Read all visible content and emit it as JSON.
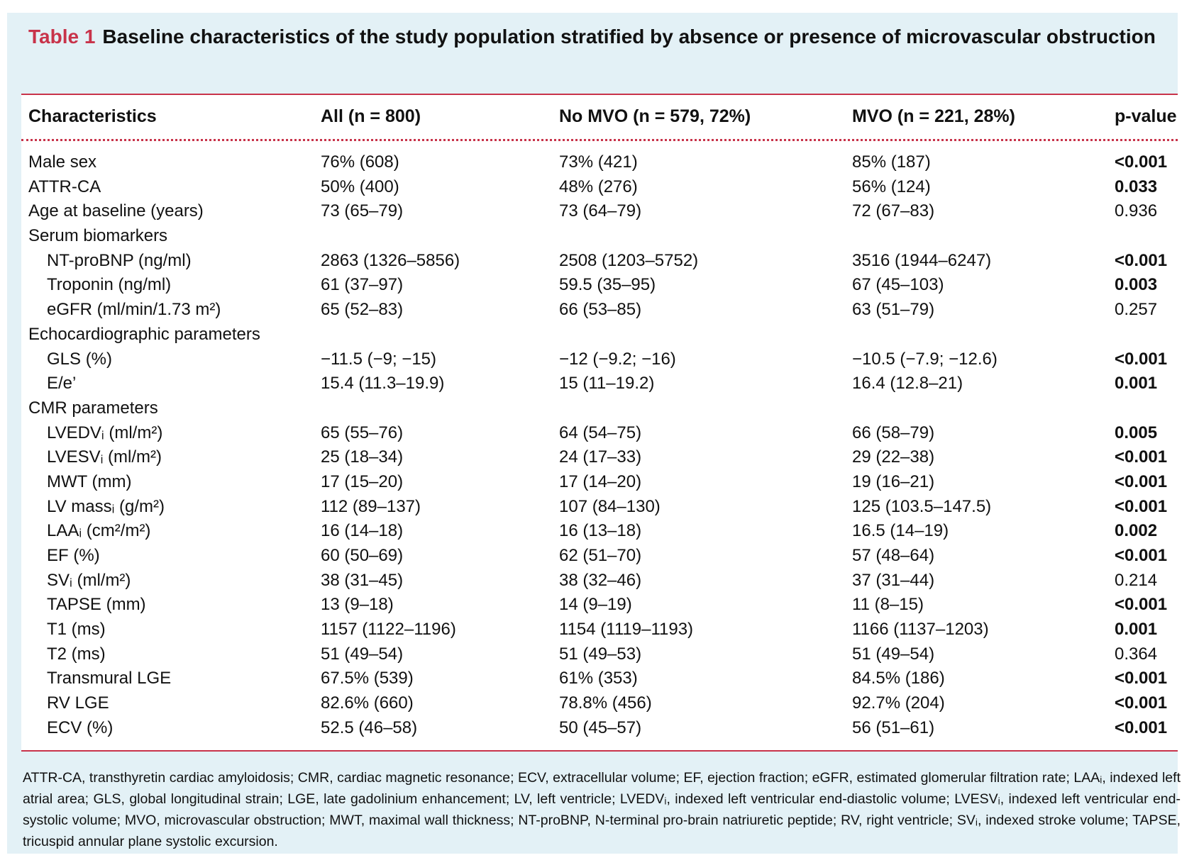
{
  "title": {
    "label": "Table 1",
    "text": "Baseline characteristics of the study population stratified by absence or presence of microvascular obstruction"
  },
  "columns": [
    "Characteristics",
    "All (n = 800)",
    "No MVO (n = 579, 72%)",
    "MVO (n = 221, 28%)",
    "p-value"
  ],
  "rows": [
    {
      "label": "Male sex",
      "indent": false,
      "all": "76% (608)",
      "no_mvo": "73% (421)",
      "mvo": "85% (187)",
      "p": "<0.001",
      "sig": true
    },
    {
      "label": "ATTR-CA",
      "indent": false,
      "all": "50% (400)",
      "no_mvo": "48% (276)",
      "mvo": "56% (124)",
      "p": "0.033",
      "sig": true
    },
    {
      "label": "Age at baseline (years)",
      "indent": false,
      "all": "73 (65–79)",
      "no_mvo": "73 (64–79)",
      "mvo": "72 (67–83)",
      "p": "0.936",
      "sig": false
    },
    {
      "label": "Serum biomarkers",
      "indent": false,
      "section": true
    },
    {
      "label": "NT-proBNP (ng/ml)",
      "indent": true,
      "all": "2863 (1326–5856)",
      "no_mvo": "2508 (1203–5752)",
      "mvo": "3516 (1944–6247)",
      "p": "<0.001",
      "sig": true
    },
    {
      "label": "Troponin (ng/ml)",
      "indent": true,
      "all": "61 (37–97)",
      "no_mvo": "59.5 (35–95)",
      "mvo": "67 (45–103)",
      "p": "0.003",
      "sig": true
    },
    {
      "label": "eGFR (ml/min/1.73 m²)",
      "indent": true,
      "all": "65 (52–83)",
      "no_mvo": "66 (53–85)",
      "mvo": "63 (51–79)",
      "p": "0.257",
      "sig": false
    },
    {
      "label": "Echocardiographic parameters",
      "indent": false,
      "section": true
    },
    {
      "label": "GLS (%)",
      "indent": true,
      "all": "−11.5 (−9; −15)",
      "no_mvo": "−12 (−9.2; −16)",
      "mvo": "−10.5 (−7.9; −12.6)",
      "p": "<0.001",
      "sig": true
    },
    {
      "label": "E/e’",
      "indent": true,
      "all": "15.4 (11.3–19.9)",
      "no_mvo": "15 (11–19.2)",
      "mvo": "16.4 (12.8–21)",
      "p": "0.001",
      "sig": true
    },
    {
      "label": "CMR parameters",
      "indent": false,
      "section": true
    },
    {
      "label": "LVEDVᵢ (ml/m²)",
      "indent": true,
      "all": "65 (55–76)",
      "no_mvo": "64 (54–75)",
      "mvo": "66 (58–79)",
      "p": "0.005",
      "sig": true
    },
    {
      "label": "LVESVᵢ (ml/m²)",
      "indent": true,
      "all": "25 (18–34)",
      "no_mvo": "24 (17–33)",
      "mvo": "29 (22–38)",
      "p": "<0.001",
      "sig": true
    },
    {
      "label": "MWT (mm)",
      "indent": true,
      "all": "17 (15–20)",
      "no_mvo": "17 (14–20)",
      "mvo": "19 (16–21)",
      "p": "<0.001",
      "sig": true
    },
    {
      "label": "LV massᵢ (g/m²)",
      "indent": true,
      "all": "112 (89–137)",
      "no_mvo": "107 (84–130)",
      "mvo": "125 (103.5–147.5)",
      "p": "<0.001",
      "sig": true
    },
    {
      "label": "LAAᵢ (cm²/m²)",
      "indent": true,
      "all": "16 (14–18)",
      "no_mvo": "16 (13–18)",
      "mvo": "16.5 (14–19)",
      "p": "0.002",
      "sig": true
    },
    {
      "label": "EF (%)",
      "indent": true,
      "all": "60 (50–69)",
      "no_mvo": "62 (51–70)",
      "mvo": "57 (48–64)",
      "p": "<0.001",
      "sig": true
    },
    {
      "label": "SVᵢ (ml/m²)",
      "indent": true,
      "all": "38 (31–45)",
      "no_mvo": "38 (32–46)",
      "mvo": "37 (31–44)",
      "p": "0.214",
      "sig": false
    },
    {
      "label": "TAPSE (mm)",
      "indent": true,
      "all": "13 (9–18)",
      "no_mvo": "14 (9–19)",
      "mvo": "11 (8–15)",
      "p": "<0.001",
      "sig": true
    },
    {
      "label": "T1 (ms)",
      "indent": true,
      "all": "1157 (1122–1196)",
      "no_mvo": "1154 (1119–1193)",
      "mvo": "1166 (1137–1203)",
      "p": "0.001",
      "sig": true
    },
    {
      "label": "T2 (ms)",
      "indent": true,
      "all": "51 (49–54)",
      "no_mvo": "51 (49–53)",
      "mvo": "51 (49–54)",
      "p": "0.364",
      "sig": false
    },
    {
      "label": "Transmural LGE",
      "indent": true,
      "all": "67.5% (539)",
      "no_mvo": "61% (353)",
      "mvo": "84.5% (186)",
      "p": "<0.001",
      "sig": true
    },
    {
      "label": "RV LGE",
      "indent": true,
      "all": "82.6% (660)",
      "no_mvo": "78.8% (456)",
      "mvo": "92.7% (204)",
      "p": "<0.001",
      "sig": true
    },
    {
      "label": "ECV (%)",
      "indent": true,
      "all": "52.5 (46–58)",
      "no_mvo": "50 (45–57)",
      "mvo": "56 (51–61)",
      "p": "<0.001",
      "sig": true
    }
  ],
  "footnote": "ATTR-CA, transthyretin cardiac amyloidosis; CMR, cardiac magnetic resonance; ECV, extracellular volume; EF, ejection fraction; eGFR, estimated glomerular filtration rate; LAAᵢ, indexed left atrial area; GLS, global longitudinal strain; LGE, late gadolinium enhancement; LV, left ventricle; LVEDVᵢ, indexed left ventricular end-diastolic volume; LVESVᵢ, indexed left ventricular end-systolic volume; MVO, microvascular obstruction; MWT, maximal wall thickness; NT-proBNP, N-terminal pro-brain natriuretic peptide; RV, right ventricle; SVᵢ, indexed stroke volume; TAPSE, tricuspid annular plane systolic excursion."
}
